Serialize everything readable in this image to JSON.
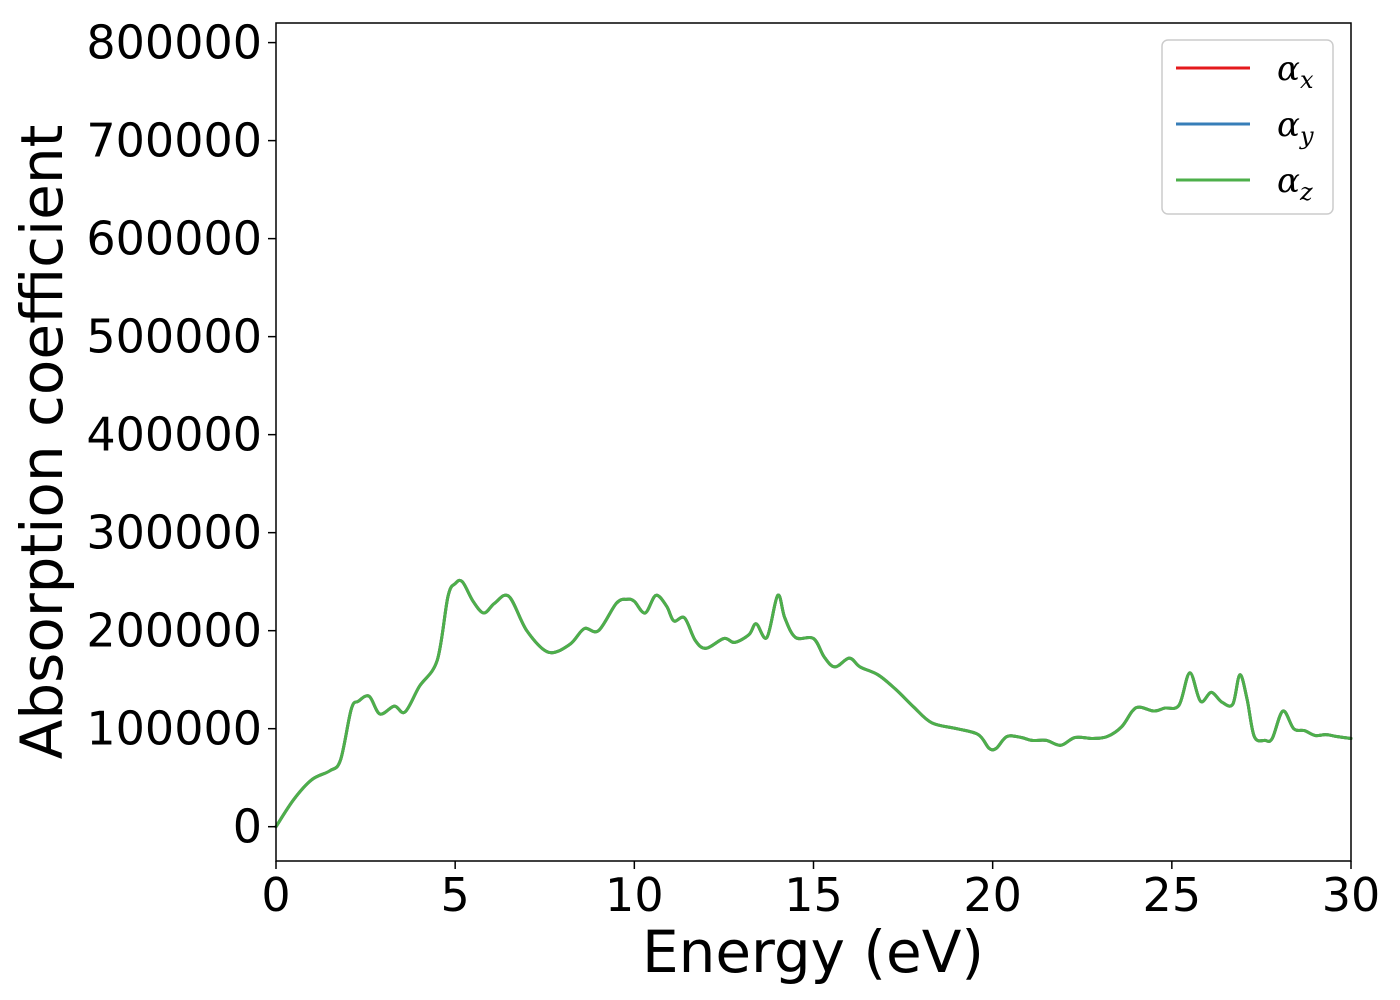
{
  "chart_data": {
    "type": "line",
    "title": "",
    "xlabel": "Energy (eV)",
    "ylabel": "Absorption coefficient",
    "xlim": [
      0,
      30
    ],
    "ylim": [
      -35000,
      820000
    ],
    "xticks": [
      0,
      5,
      10,
      15,
      20,
      25,
      30
    ],
    "xtick_labels": [
      "0",
      "5",
      "10",
      "15",
      "20",
      "25",
      "30"
    ],
    "yticks": [
      0,
      100000,
      200000,
      300000,
      400000,
      500000,
      600000,
      700000,
      800000
    ],
    "ytick_labels": [
      "0",
      "100000",
      "200000",
      "300000",
      "400000",
      "500000",
      "600000",
      "700000",
      "800000"
    ],
    "grid": false,
    "legend_position": "top-right",
    "x": [
      0,
      0.5,
      1.0,
      1.5,
      1.8,
      2.1,
      2.3,
      2.6,
      2.9,
      3.3,
      3.6,
      4.0,
      4.5,
      4.8,
      5.0,
      5.2,
      5.5,
      5.8,
      6.1,
      6.5,
      7.0,
      7.6,
      8.2,
      8.6,
      9.0,
      9.5,
      9.8,
      10.0,
      10.3,
      10.6,
      10.9,
      11.1,
      11.4,
      11.7,
      12.0,
      12.5,
      12.8,
      13.2,
      13.4,
      13.7,
      14.0,
      14.2,
      14.5,
      15.0,
      15.3,
      15.6,
      16.0,
      16.3,
      16.8,
      17.3,
      17.8,
      18.3,
      19.0,
      19.6,
      19.9,
      20.1,
      20.4,
      20.8,
      21.1,
      21.5,
      21.9,
      22.3,
      22.8,
      23.2,
      23.6,
      23.9,
      24.1,
      24.5,
      24.8,
      25.2,
      25.5,
      25.8,
      26.1,
      26.4,
      26.7,
      26.9,
      27.1,
      27.3,
      27.6,
      27.8,
      28.1,
      28.4,
      28.7,
      29.0,
      29.3,
      29.6,
      30.0
    ],
    "series": [
      {
        "name": "αx",
        "color": "#e41a1c",
        "values": [
          0,
          28000,
          48000,
          57000,
          68000,
          120000,
          128000,
          133000,
          115000,
          123000,
          117000,
          143000,
          170000,
          235000,
          248000,
          250000,
          230000,
          218000,
          228000,
          235000,
          200000,
          178000,
          186000,
          202000,
          200000,
          228000,
          232000,
          230000,
          218000,
          236000,
          225000,
          210000,
          213000,
          190000,
          182000,
          192000,
          188000,
          196000,
          207000,
          193000,
          236000,
          213000,
          193000,
          192000,
          173000,
          163000,
          172000,
          163000,
          155000,
          140000,
          122000,
          106000,
          100000,
          94000,
          80000,
          80000,
          92000,
          91000,
          88000,
          88000,
          83000,
          91000,
          90000,
          92000,
          102000,
          118000,
          122000,
          118000,
          121000,
          124000,
          157000,
          128000,
          137000,
          127000,
          125000,
          155000,
          130000,
          92000,
          88000,
          90000,
          118000,
          100000,
          98000,
          93000,
          94000,
          92000,
          90000
        ]
      },
      {
        "name": "αy",
        "color": "#377eb8",
        "values": [
          0,
          28000,
          48000,
          57000,
          68000,
          120000,
          128000,
          133000,
          115000,
          123000,
          117000,
          143000,
          170000,
          235000,
          248000,
          250000,
          230000,
          218000,
          228000,
          235000,
          200000,
          178000,
          186000,
          202000,
          200000,
          228000,
          232000,
          230000,
          218000,
          236000,
          225000,
          210000,
          213000,
          190000,
          182000,
          192000,
          188000,
          196000,
          207000,
          193000,
          236000,
          213000,
          193000,
          192000,
          173000,
          163000,
          172000,
          163000,
          155000,
          140000,
          122000,
          106000,
          100000,
          94000,
          80000,
          80000,
          92000,
          91000,
          88000,
          88000,
          83000,
          91000,
          90000,
          92000,
          102000,
          118000,
          122000,
          118000,
          121000,
          124000,
          157000,
          128000,
          137000,
          127000,
          125000,
          155000,
          130000,
          92000,
          88000,
          90000,
          118000,
          100000,
          98000,
          93000,
          94000,
          92000,
          90000
        ]
      },
      {
        "name": "αz",
        "color": "#4daf4a",
        "values": [
          0,
          28000,
          48000,
          57000,
          68000,
          120000,
          128000,
          133000,
          115000,
          123000,
          117000,
          143000,
          170000,
          235000,
          248000,
          250000,
          230000,
          218000,
          228000,
          235000,
          200000,
          178000,
          186000,
          202000,
          200000,
          228000,
          232000,
          230000,
          218000,
          236000,
          225000,
          210000,
          213000,
          190000,
          182000,
          192000,
          188000,
          196000,
          207000,
          193000,
          236000,
          213000,
          193000,
          192000,
          173000,
          163000,
          172000,
          163000,
          155000,
          140000,
          122000,
          106000,
          100000,
          94000,
          80000,
          80000,
          92000,
          91000,
          88000,
          88000,
          83000,
          91000,
          90000,
          92000,
          102000,
          118000,
          122000,
          118000,
          121000,
          124000,
          157000,
          128000,
          137000,
          127000,
          125000,
          155000,
          130000,
          92000,
          88000,
          90000,
          118000,
          100000,
          98000,
          93000,
          94000,
          92000,
          90000
        ]
      }
    ],
    "legend": [
      {
        "base": "α",
        "sub": "x",
        "color": "#e41a1c"
      },
      {
        "base": "α",
        "sub": "y",
        "color": "#377eb8"
      },
      {
        "base": "α",
        "sub": "z",
        "color": "#4daf4a"
      }
    ]
  }
}
